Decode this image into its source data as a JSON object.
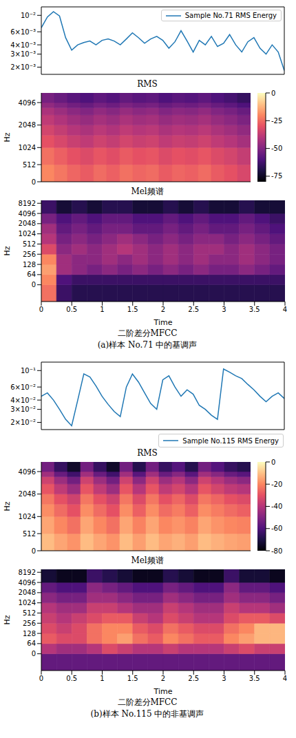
{
  "chart_data": [
    {
      "type": "line",
      "title": "RMS",
      "x": [
        0,
        0.1,
        0.2,
        0.3,
        0.4,
        0.5,
        0.6,
        0.7,
        0.8,
        0.9,
        1,
        1.1,
        1.2,
        1.3,
        1.4,
        1.5,
        1.6,
        1.7,
        1.8,
        1.9,
        2,
        2.1,
        2.2,
        2.3,
        2.4,
        2.5,
        2.6,
        2.7,
        2.8,
        2.9,
        3,
        3.1,
        3.2,
        3.3,
        3.4,
        3.5,
        3.6,
        3.7,
        3.8,
        3.9,
        4
      ],
      "series": [
        {
          "name": "Sample No.71 RMS Energy",
          "color": "#1f77b4",
          "values": [
            0.0068,
            0.0095,
            0.0112,
            0.0098,
            0.005,
            0.0034,
            0.004,
            0.0043,
            0.0045,
            0.004,
            0.0046,
            0.0048,
            0.0045,
            0.004,
            0.0048,
            0.0058,
            0.005,
            0.0042,
            0.0048,
            0.0052,
            0.0046,
            0.0036,
            0.0044,
            0.0062,
            0.0045,
            0.0032,
            0.0046,
            0.004,
            0.0052,
            0.0038,
            0.0042,
            0.0055,
            0.004,
            0.0032,
            0.0044,
            0.005,
            0.0036,
            0.003,
            0.004,
            0.0032,
            0.0018
          ]
        }
      ],
      "xlim": [
        0,
        4
      ],
      "ylim": [
        0.0016,
        0.013
      ],
      "yticks": [
        {
          "value": 0.002,
          "label": "2×10⁻³"
        },
        {
          "value": 0.003,
          "label": "3×10⁻³"
        },
        {
          "value": 0.004,
          "label": "4×10⁻³"
        },
        {
          "value": 0.006,
          "label": "6×10⁻³"
        },
        {
          "value": 0.01,
          "label": "10⁻²"
        }
      ],
      "log": "y",
      "legend": "upper right",
      "tick_labels": "y"
    },
    {
      "type": "heatmap",
      "title": "Mel频谱",
      "y_label": "Hz",
      "x_edges": [
        0,
        0.25,
        0.5,
        0.75,
        1,
        1.25,
        1.5,
        1.75,
        2,
        2.25,
        2.5,
        2.75,
        3,
        3.25,
        3.5,
        3.75,
        4
      ],
      "y_edges": [
        0,
        512,
        1024,
        1500,
        2048,
        2800,
        3500,
        4096,
        5512
      ],
      "cells": [
        [
          -20,
          -23,
          -26,
          -28,
          -25,
          -27,
          -24,
          -26,
          -25,
          -28,
          -26,
          -27,
          -25,
          -28,
          -30,
          -33
        ],
        [
          -24,
          -27,
          -30,
          -32,
          -29,
          -31,
          -28,
          -30,
          -29,
          -32,
          -30,
          -31,
          -29,
          -32,
          -34,
          -37
        ],
        [
          -30,
          -33,
          -36,
          -38,
          -35,
          -37,
          -34,
          -36,
          -35,
          -38,
          -36,
          -37,
          -35,
          -38,
          -40,
          -43
        ],
        [
          -34,
          -37,
          -40,
          -42,
          -39,
          -41,
          -38,
          -40,
          -39,
          -42,
          -40,
          -41,
          -39,
          -42,
          -44,
          -47
        ],
        [
          -38,
          -41,
          -44,
          -46,
          -43,
          -45,
          -42,
          -44,
          -43,
          -46,
          -44,
          -45,
          -43,
          -46,
          -48,
          -51
        ],
        [
          -42,
          -45,
          -48,
          -50,
          -47,
          -49,
          -46,
          -48,
          -47,
          -50,
          -48,
          -49,
          -47,
          -50,
          -52,
          -55
        ],
        [
          -47,
          -50,
          -53,
          -55,
          -52,
          -54,
          -51,
          -53,
          -52,
          -55,
          -53,
          -54,
          -52,
          -55,
          -57,
          -60
        ],
        [
          -52,
          -55,
          -58,
          -60,
          -57,
          -59,
          -56,
          -58,
          -57,
          -60,
          -58,
          -59,
          -57,
          -60,
          -62,
          -65
        ]
      ],
      "xlim": [
        0,
        4
      ],
      "ylim": [
        0,
        5512
      ],
      "yticks": [
        0,
        512,
        1024,
        2048,
        4096
      ],
      "tick_labels": "y",
      "colorbar": {
        "lim": [
          -80,
          0
        ],
        "ticks": [
          0,
          -25,
          -50,
          -75
        ]
      }
    },
    {
      "type": "heatmap",
      "title": "二阶差分MFCC",
      "subtitle": "(a)样本 No.71 中的基调声",
      "x_label": "Time",
      "y_label": "Hz",
      "x_edges": [
        0,
        0.25,
        0.5,
        0.75,
        1,
        1.25,
        1.5,
        1.75,
        2,
        2.25,
        2.5,
        2.75,
        3,
        3.25,
        3.5,
        3.75,
        4
      ],
      "y_edges": [
        -100,
        0,
        64,
        128,
        256,
        512,
        1024,
        2048,
        4096,
        10000
      ],
      "cells": [
        [
          0.7,
          0.2,
          0.15,
          0.15,
          0.15,
          0.15,
          0.15,
          0.15,
          0.15,
          0.15,
          0.15,
          0.15,
          0.15,
          0.15,
          0.15,
          0.15
        ],
        [
          0.75,
          0.25,
          0.2,
          0.2,
          0.2,
          0.2,
          0.2,
          0.2,
          0.2,
          0.2,
          0.2,
          0.2,
          0.2,
          0.2,
          0.2,
          0.2
        ],
        [
          0.8,
          0.45,
          0.4,
          0.35,
          0.4,
          0.35,
          0.4,
          0.35,
          0.4,
          0.35,
          0.4,
          0.35,
          0.35,
          0.4,
          0.35,
          0.3
        ],
        [
          0.75,
          0.45,
          0.4,
          0.4,
          0.45,
          0.4,
          0.45,
          0.4,
          0.45,
          0.4,
          0.45,
          0.4,
          0.4,
          0.45,
          0.4,
          0.35
        ],
        [
          0.6,
          0.4,
          0.45,
          0.4,
          0.45,
          0.5,
          0.45,
          0.4,
          0.45,
          0.4,
          0.45,
          0.45,
          0.4,
          0.45,
          0.4,
          0.35
        ],
        [
          0.5,
          0.35,
          0.4,
          0.35,
          0.4,
          0.45,
          0.4,
          0.35,
          0.4,
          0.35,
          0.4,
          0.4,
          0.35,
          0.4,
          0.35,
          0.3
        ],
        [
          0.45,
          0.3,
          0.35,
          0.3,
          0.35,
          0.35,
          0.3,
          0.3,
          0.35,
          0.3,
          0.35,
          0.3,
          0.3,
          0.35,
          0.3,
          0.25
        ],
        [
          0.35,
          0.25,
          0.3,
          0.25,
          0.3,
          0.3,
          0.25,
          0.25,
          0.3,
          0.25,
          0.3,
          0.25,
          0.25,
          0.3,
          0.25,
          0.2
        ],
        [
          0.2,
          0.1,
          0.15,
          0.1,
          0.15,
          0.15,
          0.1,
          0.1,
          0.15,
          0.1,
          0.15,
          0.1,
          0.1,
          0.15,
          0.1,
          0.1
        ]
      ],
      "xlim": [
        0,
        4
      ],
      "ylim": [
        -100,
        10000
      ],
      "xticks": [
        0,
        0.5,
        1,
        1.5,
        2,
        2.5,
        3,
        3.5,
        4
      ],
      "yticks": [
        0,
        64,
        128,
        256,
        512,
        1024,
        2048,
        4096,
        8192
      ],
      "log": "y"
    },
    {
      "type": "line",
      "title": "RMS",
      "x": [
        0,
        0.1,
        0.2,
        0.3,
        0.4,
        0.5,
        0.6,
        0.7,
        0.8,
        0.9,
        1,
        1.1,
        1.2,
        1.3,
        1.4,
        1.5,
        1.6,
        1.7,
        1.8,
        1.9,
        2,
        2.1,
        2.2,
        2.3,
        2.4,
        2.5,
        2.6,
        2.7,
        2.8,
        2.9,
        3,
        3.1,
        3.2,
        3.3,
        3.4,
        3.5,
        3.6,
        3.7,
        3.8,
        3.9,
        4
      ],
      "series": [
        {
          "name": "Sample No.115 RMS Energy",
          "color": "#1f77b4",
          "values": [
            0.045,
            0.05,
            0.04,
            0.03,
            0.022,
            0.018,
            0.04,
            0.09,
            0.082,
            0.062,
            0.045,
            0.035,
            0.028,
            0.024,
            0.06,
            0.09,
            0.07,
            0.05,
            0.036,
            0.03,
            0.075,
            0.085,
            0.06,
            0.045,
            0.055,
            0.048,
            0.034,
            0.03,
            0.025,
            0.022,
            0.105,
            0.095,
            0.085,
            0.078,
            0.065,
            0.055,
            0.045,
            0.038,
            0.045,
            0.05,
            0.042
          ]
        }
      ],
      "xlim": [
        0,
        4
      ],
      "ylim": [
        0.016,
        0.13
      ],
      "yticks": [
        {
          "value": 0.02,
          "label": "2×10⁻²"
        },
        {
          "value": 0.03,
          "label": "3×10⁻²"
        },
        {
          "value": 0.04,
          "label": "4×10⁻²"
        },
        {
          "value": 0.06,
          "label": "6×10⁻²"
        },
        {
          "value": 0.1,
          "label": "10⁻¹"
        }
      ],
      "log": "y",
      "legend": "bottom",
      "tick_labels": "y"
    },
    {
      "type": "heatmap",
      "title": "Mel频谱",
      "y_label": "Hz",
      "x_edges": [
        0,
        0.25,
        0.5,
        0.75,
        1,
        1.25,
        1.5,
        1.75,
        2,
        2.25,
        2.5,
        2.75,
        3,
        3.25,
        3.5,
        3.75,
        4
      ],
      "y_edges": [
        0,
        512,
        1024,
        1500,
        2048,
        2800,
        3500,
        4096,
        5512
      ],
      "cells": [
        [
          -11,
          -15,
          -18,
          -11,
          -15,
          -18,
          -11,
          -16,
          -11,
          -15,
          -13,
          -16,
          -11,
          -13,
          -15,
          -16
        ],
        [
          -15,
          -20,
          -24,
          -15,
          -20,
          -24,
          -15,
          -21,
          -15,
          -20,
          -18,
          -21,
          -15,
          -18,
          -20,
          -21
        ],
        [
          -19,
          -25,
          -30,
          -19,
          -25,
          -30,
          -19,
          -27,
          -19,
          -25,
          -22,
          -27,
          -19,
          -22,
          -25,
          -27
        ],
        [
          -23,
          -30,
          -35,
          -23,
          -30,
          -35,
          -23,
          -32,
          -23,
          -30,
          -26,
          -32,
          -23,
          -26,
          -30,
          -32
        ],
        [
          -29,
          -38,
          -45,
          -29,
          -38,
          -45,
          -29,
          -40,
          -29,
          -38,
          -34,
          -40,
          -29,
          -34,
          -38,
          -40
        ],
        [
          -35,
          -45,
          -53,
          -35,
          -45,
          -53,
          -35,
          -48,
          -35,
          -45,
          -40,
          -48,
          -35,
          -40,
          -45,
          -48
        ],
        [
          -44,
          -55,
          -63,
          -44,
          -55,
          -63,
          -44,
          -58,
          -44,
          -55,
          -49,
          -58,
          -44,
          -49,
          -55,
          -58
        ],
        [
          -53,
          -65,
          -74,
          -53,
          -65,
          -74,
          -53,
          -68,
          -53,
          -65,
          -59,
          -68,
          -53,
          -59,
          -65,
          -68
        ]
      ],
      "xlim": [
        0,
        4
      ],
      "ylim": [
        0,
        5512
      ],
      "yticks": [
        0,
        512,
        1024,
        2048,
        4096
      ],
      "tick_labels": "y",
      "colorbar": {
        "lim": [
          -80,
          0
        ],
        "ticks": [
          0,
          -20,
          -40,
          -60,
          -80
        ]
      }
    },
    {
      "type": "heatmap",
      "title": "二阶差分MFCC",
      "subtitle": "(b)样本 No.115 中的非基调声",
      "x_label": "Time",
      "y_label": "Hz",
      "x_edges": [
        0,
        0.25,
        0.5,
        0.75,
        1,
        1.25,
        1.5,
        1.75,
        2,
        2.25,
        2.5,
        2.75,
        3,
        3.25,
        3.5,
        3.75,
        4
      ],
      "y_edges": [
        -100,
        0,
        64,
        128,
        256,
        512,
        1024,
        2048,
        4096,
        10000
      ],
      "cells": [
        [
          0.3,
          0.3,
          0.3,
          0.3,
          0.3,
          0.3,
          0.3,
          0.3,
          0.3,
          0.3,
          0.3,
          0.3,
          0.3,
          0.3,
          0.3,
          0.3
        ],
        [
          0.5,
          0.45,
          0.45,
          0.5,
          0.6,
          0.55,
          0.5,
          0.5,
          0.55,
          0.5,
          0.5,
          0.5,
          0.55,
          0.6,
          0.55,
          0.55
        ],
        [
          0.65,
          0.6,
          0.6,
          0.7,
          0.75,
          0.8,
          0.7,
          0.65,
          0.75,
          0.7,
          0.65,
          0.65,
          0.75,
          0.8,
          0.85,
          0.85
        ],
        [
          0.6,
          0.55,
          0.6,
          0.7,
          0.75,
          0.75,
          0.65,
          0.6,
          0.7,
          0.65,
          0.6,
          0.6,
          0.7,
          0.75,
          0.85,
          0.85
        ],
        [
          0.55,
          0.5,
          0.55,
          0.6,
          0.65,
          0.65,
          0.55,
          0.5,
          0.6,
          0.55,
          0.5,
          0.5,
          0.6,
          0.65,
          0.65,
          0.6
        ],
        [
          0.5,
          0.45,
          0.45,
          0.55,
          0.55,
          0.5,
          0.45,
          0.45,
          0.55,
          0.5,
          0.45,
          0.45,
          0.55,
          0.5,
          0.5,
          0.45
        ],
        [
          0.4,
          0.35,
          0.35,
          0.45,
          0.45,
          0.4,
          0.35,
          0.35,
          0.45,
          0.4,
          0.35,
          0.35,
          0.45,
          0.4,
          0.4,
          0.35
        ],
        [
          0.3,
          0.25,
          0.25,
          0.4,
          0.35,
          0.3,
          0.25,
          0.25,
          0.35,
          0.3,
          0.25,
          0.25,
          0.4,
          0.3,
          0.3,
          0.25
        ],
        [
          0.1,
          0.05,
          0.05,
          0.2,
          0.15,
          0.1,
          0.05,
          0.05,
          0.15,
          0.1,
          0.05,
          0.05,
          0.2,
          0.1,
          0.1,
          0.05
        ]
      ],
      "xlim": [
        0,
        4
      ],
      "ylim": [
        -100,
        10000
      ],
      "xticks": [
        0,
        0.5,
        1,
        1.5,
        2,
        2.5,
        3,
        3.5,
        4
      ],
      "yticks": [
        0,
        64,
        128,
        256,
        512,
        1024,
        2048,
        4096,
        8192
      ],
      "log": "y"
    }
  ]
}
